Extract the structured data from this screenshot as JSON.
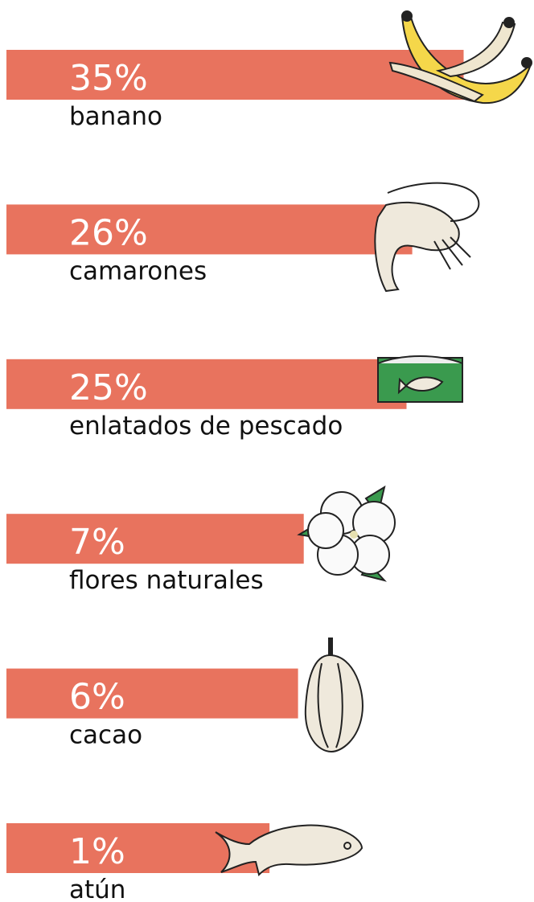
{
  "chart_data": {
    "type": "bar",
    "categories": [
      "banano",
      "camarones",
      "enlatados de pescado",
      "flores naturales",
      "cacao",
      "atún"
    ],
    "values": [
      35,
      26,
      25,
      7,
      6,
      1
    ],
    "value_labels": [
      "35%",
      "26%",
      "25%",
      "7%",
      "6%",
      "1%"
    ],
    "color": "#e8735e"
  }
}
